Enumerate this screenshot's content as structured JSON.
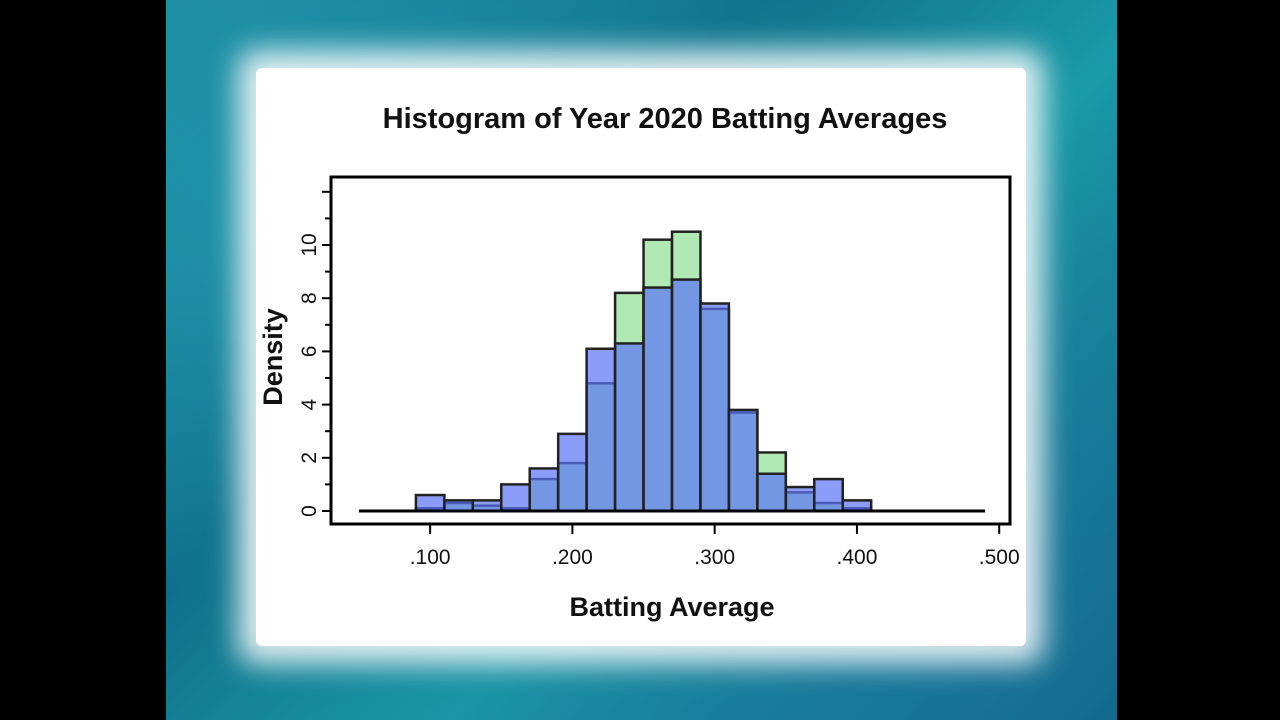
{
  "chart_data": {
    "type": "bar",
    "title": "Histogram of Year 2020 Batting Averages",
    "xlabel": "Batting Average",
    "ylabel": "Density",
    "xlim": [
      0.05,
      0.49
    ],
    "ylim": [
      0,
      12
    ],
    "xticks": [
      0.1,
      0.2,
      0.3,
      0.4,
      0.5
    ],
    "xtick_labels": [
      ".100",
      ".200",
      ".300",
      ".400",
      ".500"
    ],
    "yticks": [
      0,
      2,
      4,
      6,
      8,
      10
    ],
    "ytick_labels": [
      "0",
      "2",
      "4",
      "6",
      "8",
      "10"
    ],
    "bin_edges": [
      0.09,
      0.11,
      0.13,
      0.15,
      0.17,
      0.19,
      0.21,
      0.23,
      0.25,
      0.27,
      0.29,
      0.31,
      0.33,
      0.35,
      0.37,
      0.39,
      0.41
    ],
    "series": [
      {
        "values": [
          0.1,
          0.3,
          0.2,
          0.1,
          1.2,
          1.8,
          4.8,
          8.2,
          10.2,
          10.5,
          7.6,
          3.7,
          2.2,
          0.7,
          0.3,
          0.1
        ]
      },
      {
        "values": [
          0.6,
          0.4,
          0.4,
          1.0,
          1.6,
          2.9,
          6.1,
          6.3,
          8.4,
          8.7,
          7.8,
          3.8,
          1.4,
          0.9,
          1.2,
          0.4
        ]
      }
    ],
    "colors": {
      "green": "rgba(150,225,155,0.75)",
      "blue": "rgba(90,115,245,0.7)",
      "edge": "#222222"
    },
    "grid": false,
    "baseline_range": [
      0.05,
      0.49
    ]
  }
}
